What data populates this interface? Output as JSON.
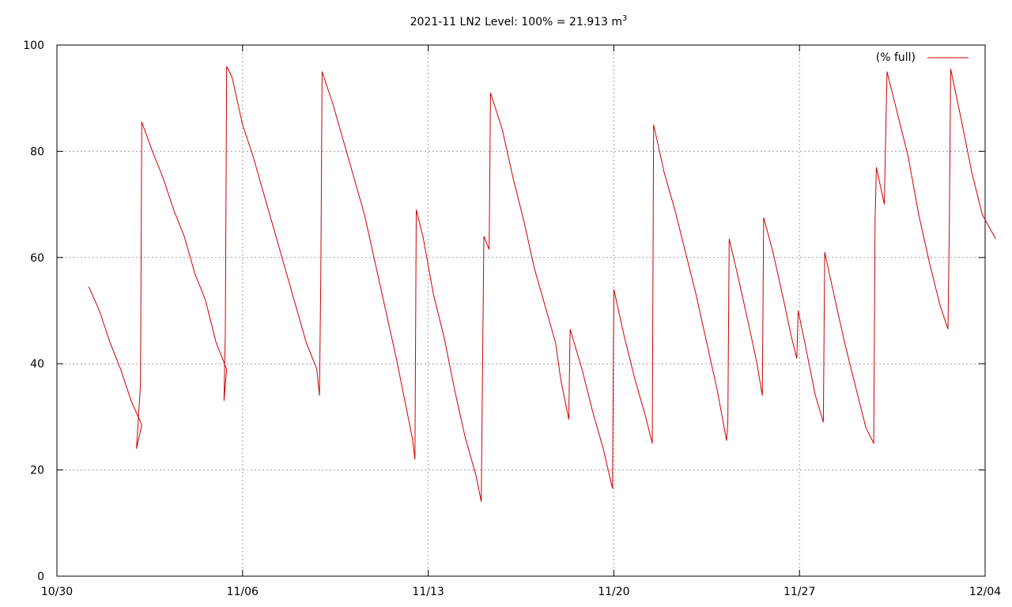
{
  "chart_data": {
    "type": "line",
    "title": "2021-11 LN2 Level: 100% = 21.913 m",
    "title_superscript": "3",
    "xlabel": "",
    "ylabel": "",
    "x_tick_labels": [
      "10/30",
      "11/06",
      "11/13",
      "11/20",
      "11/27",
      "12/04"
    ],
    "y_tick_labels": [
      "0",
      "20",
      "40",
      "60",
      "80",
      "100"
    ],
    "xlim_days": [
      0,
      35
    ],
    "ylim": [
      0,
      100
    ],
    "grid": true,
    "legend_position": "top-right",
    "series": [
      {
        "name": "(% full)",
        "color": "#cc0000",
        "points": [
          [
            1.2,
            54.5
          ],
          [
            1.6,
            50
          ],
          [
            2.0,
            44
          ],
          [
            2.4,
            39
          ],
          [
            2.8,
            33
          ],
          [
            3.2,
            28.5
          ],
          [
            3.0,
            24
          ],
          [
            3.0,
            24
          ],
          [
            3.05,
            28
          ],
          [
            3.15,
            36
          ],
          [
            3.2,
            85.5
          ],
          [
            3.6,
            80
          ],
          [
            4.0,
            75
          ],
          [
            4.4,
            69
          ],
          [
            4.8,
            64
          ],
          [
            5.2,
            57
          ],
          [
            5.6,
            52
          ],
          [
            6.0,
            44
          ],
          [
            6.4,
            39
          ],
          [
            6.3,
            33
          ],
          [
            6.35,
            46
          ],
          [
            6.4,
            96
          ],
          [
            6.6,
            94
          ],
          [
            7.0,
            85
          ],
          [
            7.4,
            79
          ],
          [
            7.8,
            72
          ],
          [
            8.2,
            65
          ],
          [
            8.6,
            58
          ],
          [
            9.0,
            51
          ],
          [
            9.4,
            44
          ],
          [
            9.8,
            39
          ],
          [
            9.9,
            34
          ],
          [
            9.95,
            57
          ],
          [
            10.0,
            95
          ],
          [
            10.4,
            89
          ],
          [
            10.8,
            82
          ],
          [
            11.2,
            75
          ],
          [
            11.6,
            68
          ],
          [
            12.0,
            59
          ],
          [
            12.4,
            50
          ],
          [
            12.8,
            41
          ],
          [
            13.2,
            31
          ],
          [
            13.4,
            26
          ],
          [
            13.5,
            22
          ],
          [
            13.55,
            69
          ],
          [
            13.8,
            64
          ],
          [
            14.2,
            53
          ],
          [
            14.6,
            45
          ],
          [
            15.0,
            35
          ],
          [
            15.4,
            26
          ],
          [
            15.8,
            19
          ],
          [
            16.0,
            14
          ],
          [
            16.05,
            40
          ],
          [
            16.1,
            64
          ],
          [
            16.3,
            61.5
          ],
          [
            16.35,
            91
          ],
          [
            16.8,
            84
          ],
          [
            17.2,
            75
          ],
          [
            17.6,
            67
          ],
          [
            18.0,
            58
          ],
          [
            18.4,
            51
          ],
          [
            18.8,
            44
          ],
          [
            19.0,
            37
          ],
          [
            19.2,
            32
          ],
          [
            19.3,
            29.5
          ],
          [
            19.35,
            46.5
          ],
          [
            19.8,
            39
          ],
          [
            20.2,
            31
          ],
          [
            20.6,
            24
          ],
          [
            20.95,
            16.5
          ],
          [
            21.0,
            54
          ],
          [
            21.4,
            45
          ],
          [
            21.8,
            37
          ],
          [
            22.2,
            30
          ],
          [
            22.45,
            25
          ],
          [
            22.5,
            85
          ],
          [
            22.9,
            76
          ],
          [
            23.3,
            69
          ],
          [
            23.7,
            61
          ],
          [
            24.1,
            53
          ],
          [
            24.5,
            44
          ],
          [
            24.9,
            35
          ],
          [
            25.25,
            25.5
          ],
          [
            25.3,
            29
          ],
          [
            25.35,
            63.5
          ],
          [
            25.7,
            56
          ],
          [
            26.1,
            47
          ],
          [
            26.4,
            40
          ],
          [
            26.6,
            34
          ],
          [
            26.65,
            67.5
          ],
          [
            27.0,
            61
          ],
          [
            27.4,
            52
          ],
          [
            27.7,
            45
          ],
          [
            27.9,
            41
          ],
          [
            27.95,
            50
          ],
          [
            28.2,
            44
          ],
          [
            28.6,
            34
          ],
          [
            28.9,
            29
          ],
          [
            28.95,
            61
          ],
          [
            29.3,
            53
          ],
          [
            29.7,
            44
          ],
          [
            30.1,
            36
          ],
          [
            30.5,
            28
          ],
          [
            30.8,
            25
          ],
          [
            30.85,
            67
          ],
          [
            30.9,
            77
          ],
          [
            31.2,
            70
          ],
          [
            31.3,
            95
          ],
          [
            31.7,
            87
          ],
          [
            32.1,
            79
          ],
          [
            32.5,
            68
          ],
          [
            32.9,
            59
          ],
          [
            33.3,
            51
          ],
          [
            33.6,
            46.5
          ],
          [
            33.65,
            65
          ],
          [
            33.7,
            95.5
          ],
          [
            34.1,
            86
          ],
          [
            34.5,
            76
          ],
          [
            34.9,
            68
          ],
          [
            35.4,
            63.5
          ]
        ]
      }
    ]
  }
}
